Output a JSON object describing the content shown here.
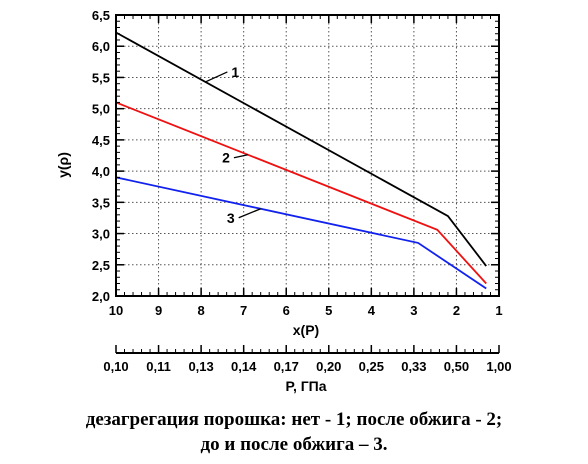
{
  "chart_data": {
    "type": "line",
    "ylabel": "y(ρ)",
    "xlabel": "x(P)",
    "x2label": "P, ГПа",
    "x_ticks": [
      "10",
      "9",
      "8",
      "7",
      "6",
      "5",
      "4",
      "3",
      "2",
      "1"
    ],
    "x_tick_values": [
      10,
      9,
      8,
      7,
      6,
      5,
      4,
      3,
      2,
      1
    ],
    "x2_ticks": [
      "0,10",
      "0,11",
      "0,13",
      "0,14",
      "0,17",
      "0,20",
      "0,25",
      "0,33",
      "0,50",
      "1,00"
    ],
    "y_ticks": [
      "2,0",
      "2,5",
      "3,0",
      "3,5",
      "4,0",
      "4,5",
      "5,0",
      "5,5",
      "6,0",
      "6,5"
    ],
    "y_tick_values": [
      2.0,
      2.5,
      3.0,
      3.5,
      4.0,
      4.5,
      5.0,
      5.5,
      6.0,
      6.5
    ],
    "xlim": [
      10,
      1
    ],
    "ylim": [
      2.0,
      6.5
    ],
    "grid": true,
    "series": [
      {
        "name": "1",
        "color": "#000000",
        "x": [
          10,
          2.2,
          1.3
        ],
        "y": [
          6.22,
          3.28,
          2.48
        ]
      },
      {
        "name": "2",
        "color": "#ee1111",
        "x": [
          10,
          2.45,
          1.3
        ],
        "y": [
          5.1,
          3.06,
          2.2
        ]
      },
      {
        "name": "3",
        "color": "#1122ee",
        "x": [
          10,
          2.9,
          1.3
        ],
        "y": [
          3.9,
          2.85,
          2.12
        ]
      }
    ]
  },
  "caption": {
    "line1": "дезагрегация порошка: нет - 1; после обжига - 2;",
    "line2": "до и после обжига – 3."
  }
}
